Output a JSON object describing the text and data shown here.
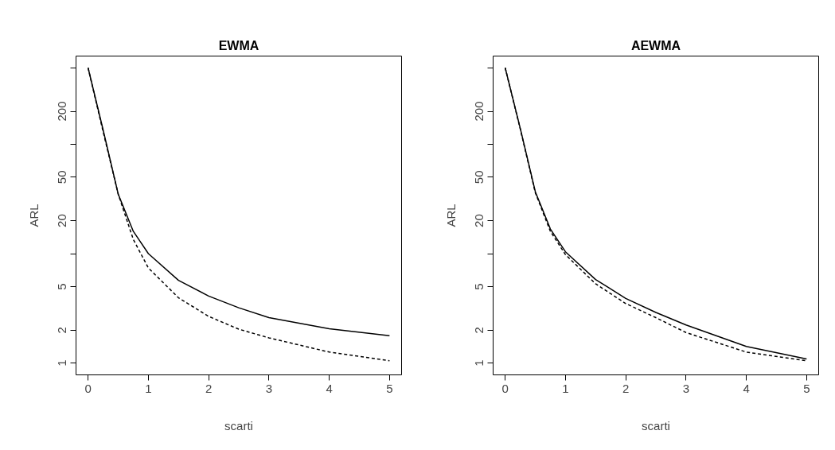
{
  "chart_data": [
    {
      "type": "line",
      "title": "EWMA",
      "xlabel": "scarti",
      "ylabel": "ARL",
      "log": "y",
      "grid": false,
      "x": [
        0,
        0.25,
        0.5,
        0.75,
        1,
        1.5,
        2,
        2.5,
        3,
        4,
        5
      ],
      "xlim": [
        -0.2,
        5.2
      ],
      "xticks": [
        0,
        1,
        2,
        3,
        4,
        5
      ],
      "ylim": [
        0.78,
        640
      ],
      "yticks": [
        1,
        2,
        5,
        {
          "value": 10,
          "label": null
        },
        20,
        50,
        {
          "value": 100,
          "label": null
        },
        200,
        {
          "value": 500,
          "label": null
        }
      ],
      "series": [
        {
          "color": "#000000",
          "line_style": "solid",
          "values": [
            500,
            135,
            35,
            16,
            10,
            5.7,
            4.1,
            3.2,
            2.6,
            2.06,
            1.78
          ]
        },
        {
          "color": "#000000",
          "line_style": "dashed",
          "values": [
            500,
            130,
            35,
            13.5,
            7.4,
            3.95,
            2.67,
            2.04,
            1.7,
            1.26,
            1.05
          ]
        }
      ]
    },
    {
      "type": "line",
      "title": "AEWMA",
      "xlabel": "scarti",
      "ylabel": "ARL",
      "log": "y",
      "grid": false,
      "x": [
        0,
        0.25,
        0.5,
        0.75,
        1,
        1.5,
        2,
        2.5,
        3,
        4,
        5
      ],
      "xlim": [
        -0.2,
        5.2
      ],
      "xticks": [
        0,
        1,
        2,
        3,
        4,
        5
      ],
      "ylim": [
        0.78,
        640
      ],
      "yticks": [
        1,
        2,
        5,
        {
          "value": 10,
          "label": null
        },
        20,
        50,
        {
          "value": 100,
          "label": null
        },
        200,
        {
          "value": 500,
          "label": null
        }
      ],
      "series": [
        {
          "color": "#000000",
          "line_style": "solid",
          "values": [
            500,
            140,
            36.8,
            16.8,
            10.4,
            5.8,
            3.9,
            2.9,
            2.23,
            1.42,
            1.09
          ]
        },
        {
          "color": "#000000",
          "line_style": "dashed",
          "values": [
            500,
            138,
            36,
            16,
            9.8,
            5.3,
            3.5,
            2.6,
            1.9,
            1.26,
            1.05
          ]
        }
      ]
    }
  ]
}
